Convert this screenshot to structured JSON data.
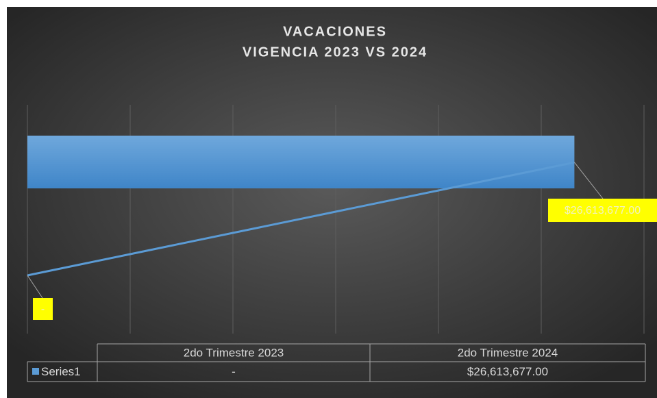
{
  "chart_data": {
    "type": "bar_line",
    "title": "VACACIONES",
    "subtitle": "VIGENCIA 2023 VS 2024",
    "categories": [
      "2do Trimestre 2023",
      "2do Trimestre 2024"
    ],
    "series": [
      {
        "name": "Series1",
        "color": "#5b9bd5",
        "values": [
          0,
          26613677
        ],
        "value_labels": [
          "-",
          "$26,613,677.00"
        ]
      }
    ],
    "xlim": [
      0,
      30000000
    ],
    "xticks": [
      0,
      5000000,
      10000000,
      15000000,
      20000000,
      25000000,
      30000000
    ],
    "grid": true,
    "label_color": "#ffff00"
  }
}
